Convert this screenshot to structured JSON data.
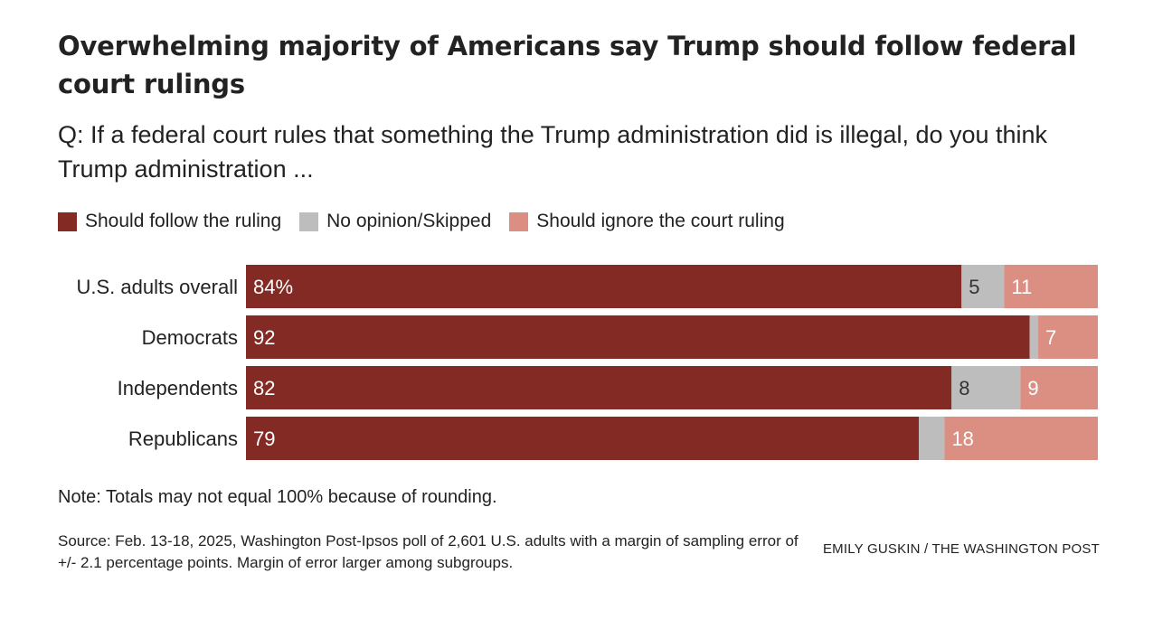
{
  "title": "Overwhelming majority of Americans say Trump should follow federal court rulings",
  "question": "Q: If a federal court rules that something the Trump administration did is illegal, do you think Trump administration ...",
  "legend": [
    {
      "label": "Should follow the ruling",
      "color": "#842a24"
    },
    {
      "label": "No opinion/Skipped",
      "color": "#bdbdbd"
    },
    {
      "label": "Should ignore the court ruling",
      "color": "#da8f82"
    }
  ],
  "chart_data": {
    "type": "bar",
    "orientation": "horizontal-stacked-100",
    "categories": [
      "U.S. adults overall",
      "Democrats",
      "Independents",
      "Republicans"
    ],
    "series": [
      {
        "name": "Should follow the ruling",
        "values": [
          84,
          92,
          82,
          79
        ],
        "color": "#842a24",
        "labels": [
          "84%",
          "92",
          "82",
          "79"
        ]
      },
      {
        "name": "No opinion/Skipped",
        "values": [
          5,
          1,
          8,
          3
        ],
        "color": "#bdbdbd",
        "labels": [
          "5",
          "",
          "8",
          ""
        ]
      },
      {
        "name": "Should ignore the court ruling",
        "values": [
          11,
          7,
          9,
          18
        ],
        "color": "#da8f82",
        "labels": [
          "11",
          "7",
          "9",
          "18"
        ]
      }
    ]
  },
  "note": "Note: Totals may not equal 100% because of rounding.",
  "source": "Source: Feb. 13-18, 2025, Washington Post-Ipsos poll of 2,601 U.S. adults with a margin of sampling error of +/- 2.1 percentage points. Margin of error larger among subgroups.",
  "credit": "EMILY GUSKIN / THE WASHINGTON POST"
}
